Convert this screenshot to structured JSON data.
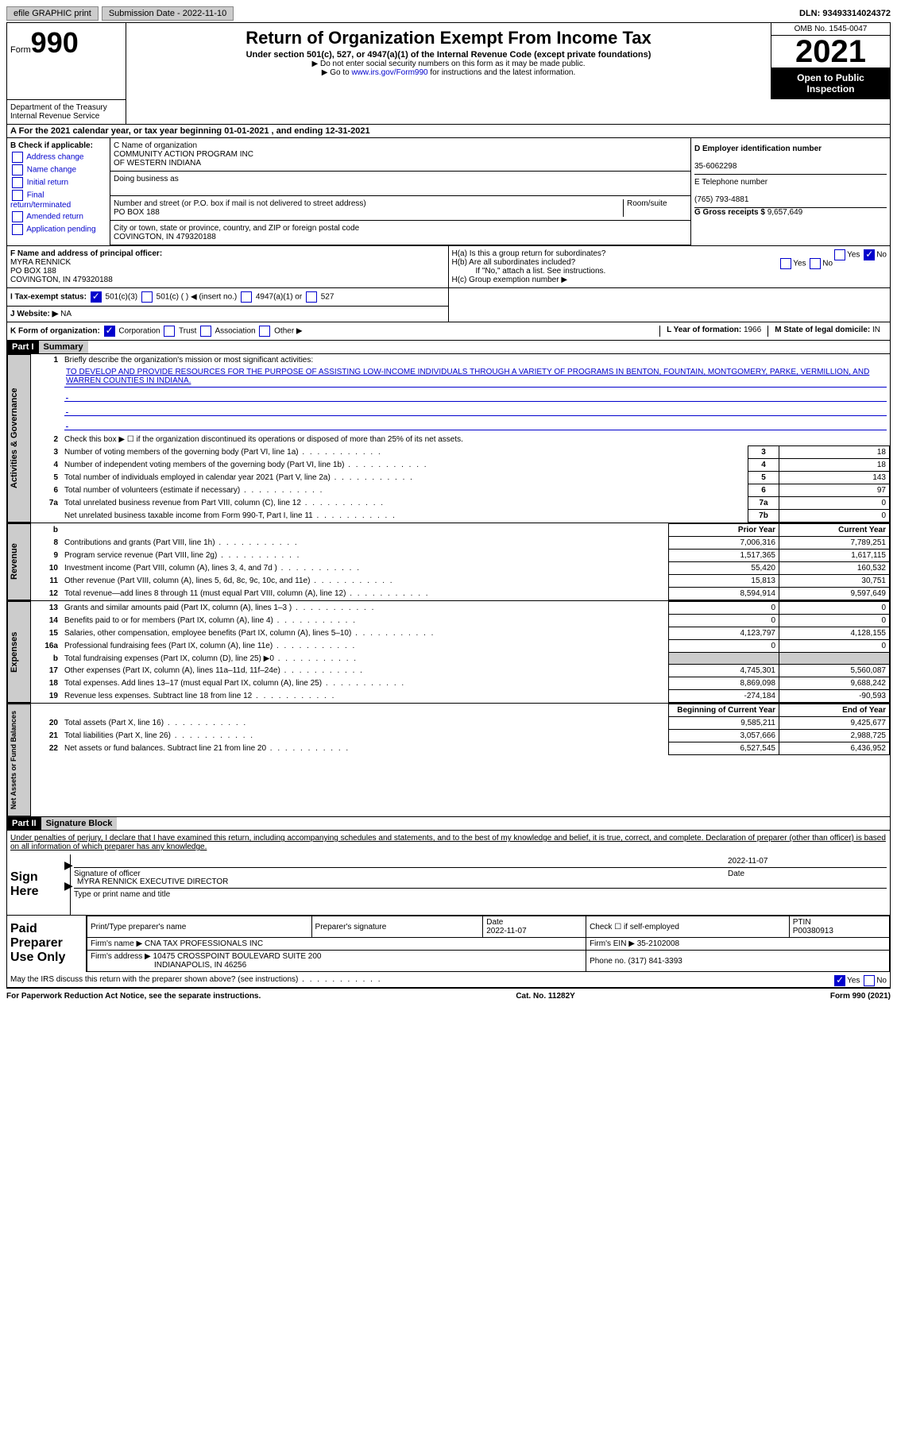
{
  "top": {
    "efile": "efile GRAPHIC print",
    "submission": "Submission Date - 2022-11-10",
    "dln": "DLN: 93493314024372"
  },
  "header": {
    "form_label": "Form",
    "form_num": "990",
    "title": "Return of Organization Exempt From Income Tax",
    "subtitle": "Under section 501(c), 527, or 4947(a)(1) of the Internal Revenue Code (except private foundations)",
    "note1": "▶ Do not enter social security numbers on this form as it may be made public.",
    "note2_pre": "▶ Go to ",
    "note2_link": "www.irs.gov/Form990",
    "note2_post": " for instructions and the latest information.",
    "omb": "OMB No. 1545-0047",
    "year": "2021",
    "open": "Open to Public Inspection",
    "dept": "Department of the Treasury Internal Revenue Service"
  },
  "period": {
    "label_a": "A For the 2021 calendar year, or tax year beginning ",
    "begin": "01-01-2021",
    "mid": " , and ending ",
    "end": "12-31-2021"
  },
  "box_b": {
    "title": "B Check if applicable:",
    "opts": [
      "Address change",
      "Name change",
      "Initial return",
      "Final return/terminated",
      "Amended return",
      "Application pending"
    ]
  },
  "box_c": {
    "name_label": "C Name of organization",
    "name1": "COMMUNITY ACTION PROGRAM INC",
    "name2": "OF WESTERN INDIANA",
    "dba_label": "Doing business as",
    "addr_label": "Number and street (or P.O. box if mail is not delivered to street address)",
    "room_label": "Room/suite",
    "addr": "PO BOX 188",
    "city_label": "City or town, state or province, country, and ZIP or foreign postal code",
    "city": "COVINGTON, IN  479320188"
  },
  "box_d": {
    "label": "D Employer identification number",
    "val": "35-6062298"
  },
  "box_e": {
    "label": "E Telephone number",
    "val": "(765) 793-4881"
  },
  "box_g": {
    "label": "G Gross receipts $ ",
    "val": "9,657,649"
  },
  "box_f": {
    "label": "F Name and address of principal officer:",
    "name": "MYRA RENNICK",
    "addr": "PO BOX 188",
    "city": "COVINGTON, IN  479320188"
  },
  "box_h": {
    "a": "H(a)  Is this a group return for subordinates?",
    "b": "H(b)  Are all subordinates included?",
    "b_note": "If \"No,\" attach a list. See instructions.",
    "c": "H(c)  Group exemption number ▶",
    "yes": "Yes",
    "no": "No"
  },
  "box_i": {
    "label": "I  Tax-exempt status:",
    "o1": "501(c)(3)",
    "o2": "501(c) (  ) ◀ (insert no.)",
    "o3": "4947(a)(1) or",
    "o4": "527"
  },
  "box_j": {
    "label": "J  Website: ▶",
    "val": "NA"
  },
  "box_k": {
    "label": "K Form of organization:",
    "o1": "Corporation",
    "o2": "Trust",
    "o3": "Association",
    "o4": "Other ▶"
  },
  "box_l": {
    "label": "L Year of formation: ",
    "val": "1966"
  },
  "box_m": {
    "label": "M State of legal domicile: ",
    "val": "IN"
  },
  "part1": {
    "header": "Part I",
    "title": "Summary",
    "q1": "Briefly describe the organization's mission or most significant activities:",
    "mission": "TO DEVELOP AND PROVIDE RESOURCES FOR THE PURPOSE OF ASSISTING LOW-INCOME INDIVIDUALS THROUGH A VARIETY OF PROGRAMS IN BENTON, FOUNTAIN, MONTGOMERY, PARKE, VERMILLION, AND WARREN COUNTIES IN INDIANA.",
    "q2": "Check this box ▶ ☐  if the organization discontinued its operations or disposed of more than 25% of its net assets.",
    "rows_ag": [
      {
        "n": "3",
        "t": "Number of voting members of the governing body (Part VI, line 1a)",
        "box": "3",
        "v": "18"
      },
      {
        "n": "4",
        "t": "Number of independent voting members of the governing body (Part VI, line 1b)",
        "box": "4",
        "v": "18"
      },
      {
        "n": "5",
        "t": "Total number of individuals employed in calendar year 2021 (Part V, line 2a)",
        "box": "5",
        "v": "143"
      },
      {
        "n": "6",
        "t": "Total number of volunteers (estimate if necessary)",
        "box": "6",
        "v": "97"
      },
      {
        "n": "7a",
        "t": "Total unrelated business revenue from Part VIII, column (C), line 12",
        "box": "7a",
        "v": "0"
      },
      {
        "n": "",
        "t": "Net unrelated business taxable income from Form 990-T, Part I, line 11",
        "box": "7b",
        "v": "0"
      }
    ],
    "col_prior": "Prior Year",
    "col_current": "Current Year",
    "rows_rev": [
      {
        "n": "8",
        "t": "Contributions and grants (Part VIII, line 1h)",
        "p": "7,006,316",
        "c": "7,789,251"
      },
      {
        "n": "9",
        "t": "Program service revenue (Part VIII, line 2g)",
        "p": "1,517,365",
        "c": "1,617,115"
      },
      {
        "n": "10",
        "t": "Investment income (Part VIII, column (A), lines 3, 4, and 7d )",
        "p": "55,420",
        "c": "160,532"
      },
      {
        "n": "11",
        "t": "Other revenue (Part VIII, column (A), lines 5, 6d, 8c, 9c, 10c, and 11e)",
        "p": "15,813",
        "c": "30,751"
      },
      {
        "n": "12",
        "t": "Total revenue—add lines 8 through 11 (must equal Part VIII, column (A), line 12)",
        "p": "8,594,914",
        "c": "9,597,649"
      }
    ],
    "rows_exp": [
      {
        "n": "13",
        "t": "Grants and similar amounts paid (Part IX, column (A), lines 1–3 )",
        "p": "0",
        "c": "0"
      },
      {
        "n": "14",
        "t": "Benefits paid to or for members (Part IX, column (A), line 4)",
        "p": "0",
        "c": "0"
      },
      {
        "n": "15",
        "t": "Salaries, other compensation, employee benefits (Part IX, column (A), lines 5–10)",
        "p": "4,123,797",
        "c": "4,128,155"
      },
      {
        "n": "16a",
        "t": "Professional fundraising fees (Part IX, column (A), line 11e)",
        "p": "0",
        "c": "0"
      },
      {
        "n": "b",
        "t": "Total fundraising expenses (Part IX, column (D), line 25) ▶0",
        "p": "",
        "c": "",
        "shade": true
      },
      {
        "n": "17",
        "t": "Other expenses (Part IX, column (A), lines 11a–11d, 11f–24e)",
        "p": "4,745,301",
        "c": "5,560,087"
      },
      {
        "n": "18",
        "t": "Total expenses. Add lines 13–17 (must equal Part IX, column (A), line 25)",
        "p": "8,869,098",
        "c": "9,688,242"
      },
      {
        "n": "19",
        "t": "Revenue less expenses. Subtract line 18 from line 12",
        "p": "-274,184",
        "c": "-90,593"
      }
    ],
    "col_begin": "Beginning of Current Year",
    "col_end": "End of Year",
    "rows_net": [
      {
        "n": "20",
        "t": "Total assets (Part X, line 16)",
        "p": "9,585,211",
        "c": "9,425,677"
      },
      {
        "n": "21",
        "t": "Total liabilities (Part X, line 26)",
        "p": "3,057,666",
        "c": "2,988,725"
      },
      {
        "n": "22",
        "t": "Net assets or fund balances. Subtract line 21 from line 20",
        "p": "6,527,545",
        "c": "6,436,952"
      }
    ],
    "label_ag": "Activities & Governance",
    "label_rev": "Revenue",
    "label_exp": "Expenses",
    "label_net": "Net Assets or Fund Balances"
  },
  "part2": {
    "header": "Part II",
    "title": "Signature Block",
    "decl": "Under penalties of perjury, I declare that I have examined this return, including accompanying schedules and statements, and to the best of my knowledge and belief, it is true, correct, and complete. Declaration of preparer (other than officer) is based on all information of which preparer has any knowledge.",
    "sign_here": "Sign Here",
    "sig_officer": "Signature of officer",
    "sig_date": "2022-11-07",
    "date_lbl": "Date",
    "name_title": "MYRA RENNICK  EXECUTIVE DIRECTOR",
    "name_lbl": "Type or print name and title",
    "paid": "Paid Preparer Use Only",
    "prep_name_lbl": "Print/Type preparer's name",
    "prep_sig_lbl": "Preparer's signature",
    "prep_date_lbl": "Date",
    "prep_date": "2022-11-07",
    "check_lbl": "Check ☐ if self-employed",
    "ptin_lbl": "PTIN",
    "ptin": "P00380913",
    "firm_name_lbl": "Firm's name    ▶ ",
    "firm_name": "CNA TAX PROFESSIONALS INC",
    "firm_ein_lbl": "Firm's EIN ▶ ",
    "firm_ein": "35-2102008",
    "firm_addr_lbl": "Firm's address ▶ ",
    "firm_addr": "10475 CROSSPOINT BOULEVARD SUITE 200",
    "firm_city": "INDIANAPOLIS, IN  46256",
    "phone_lbl": "Phone no. ",
    "phone": "(317) 841-3393",
    "discuss": "May the IRS discuss this return with the preparer shown above? (see instructions)",
    "yes": "Yes",
    "no": "No"
  },
  "footer": {
    "left": "For Paperwork Reduction Act Notice, see the separate instructions.",
    "mid": "Cat. No. 11282Y",
    "right": "Form 990 (2021)"
  }
}
